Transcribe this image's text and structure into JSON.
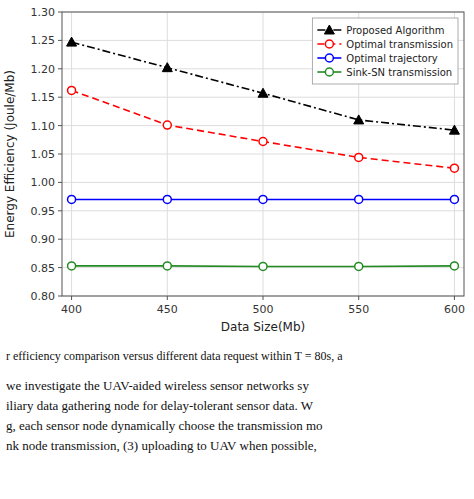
{
  "chart_data": {
    "type": "line",
    "x_label": "Data Size(Mb)",
    "y_label": "Energy Efficiency (Joule/Mb)",
    "x": [
      400,
      450,
      500,
      550,
      600
    ],
    "series": [
      {
        "name": "Proposed Algorithm",
        "color": "#000000",
        "marker": "triangle",
        "line_style": "dashdot",
        "values": [
          1.247,
          1.202,
          1.157,
          1.11,
          1.092
        ]
      },
      {
        "name": "Optimal transmission",
        "color": "#ff0000",
        "marker": "circle",
        "line_style": "dashed",
        "values": [
          1.162,
          1.101,
          1.072,
          1.044,
          1.025
        ]
      },
      {
        "name": "Optimal trajectory",
        "color": "#0000ff",
        "marker": "circle",
        "line_style": "solid",
        "values": [
          0.97,
          0.97,
          0.97,
          0.97,
          0.97
        ]
      },
      {
        "name": "Sink-SN transmission",
        "color": "#228B22",
        "marker": "circle",
        "line_style": "solid",
        "values": [
          0.853,
          0.853,
          0.852,
          0.852,
          0.853
        ]
      }
    ],
    "xlim": [
      395,
      605
    ],
    "ylim": [
      0.8,
      1.3
    ],
    "xticks": [
      400,
      450,
      500,
      550,
      600
    ],
    "yticks": [
      {
        "value": 0.8,
        "label": "0.80"
      },
      0.85,
      {
        "value": 0.9,
        "label": "0.90"
      },
      0.95,
      {
        "value": 1.0,
        "label": "1.00"
      },
      1.05,
      {
        "value": 1.1,
        "label": "1.10"
      },
      1.15,
      {
        "value": 1.2,
        "label": "1.20"
      },
      1.25,
      {
        "value": 1.3,
        "label": "1.30"
      }
    ],
    "grid": true,
    "legend": "upper right",
    "annotations": [
      "r efficiency comparison versus different data request within T = 80s, a",
      "we investigate the UAV-aided wireless sensor networks sy",
      "iliary data gathering node for delay-tolerant sensor data. W",
      "g, each sensor node dynamically choose the transmission mo",
      "nk node transmission, (3) uploading to UAV when possible,"
    ]
  }
}
